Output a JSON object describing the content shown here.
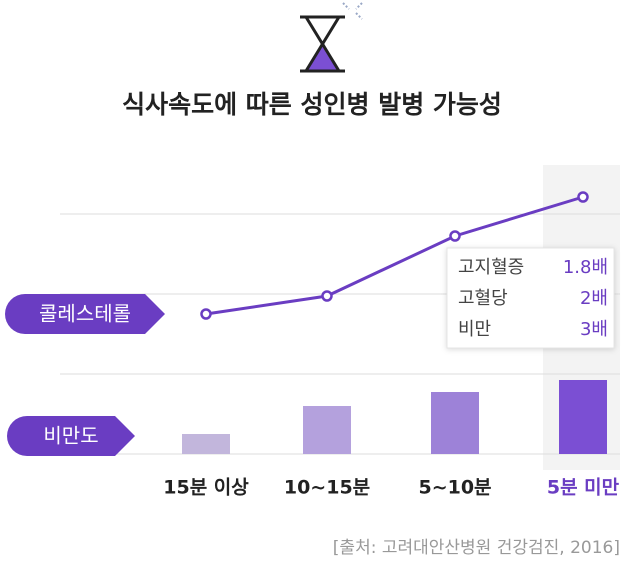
{
  "chart_data": {
    "type": "line-bar",
    "title": "식사속도에 따른 성인병 발병 가능성",
    "categories": [
      "15분 이상",
      "10~15분",
      "5~10분",
      "5분 미만"
    ],
    "highlight": 3,
    "grid": true,
    "series": [
      {
        "name": "콜레스테롤",
        "type": "line",
        "color": "#6a3dc2",
        "values": [
          2,
          3.8,
          9.8,
          13.7
        ]
      },
      {
        "name": "비만도",
        "type": "bar",
        "color": "#6a3dc2",
        "colors": [
          "#c2b6dc",
          "#b4a1dd",
          "#9d82d8",
          "#7b4fd3"
        ],
        "values": [
          2,
          4.8,
          6.2,
          7.4
        ]
      }
    ],
    "risk": {
      "labels": [
        "고지혈증",
        "고혈당",
        "비만"
      ],
      "values": [
        1.8,
        2,
        3
      ],
      "value_labels": [
        "1.8배",
        "2배",
        "3배"
      ]
    },
    "source": "[출처: 고려대안산병원 건강검진, 2016]"
  }
}
